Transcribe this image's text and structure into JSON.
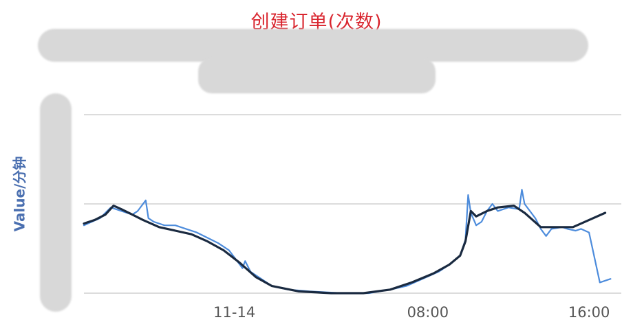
{
  "chart_data": {
    "type": "line",
    "title": "创建订单(次数)",
    "ylabel": "Value/分钟",
    "xlabel": "",
    "x_ticks": [
      {
        "x": 0.28,
        "label": "11-14"
      },
      {
        "x": 0.64,
        "label": "08:00"
      },
      {
        "x": 0.94,
        "label": "16:00"
      }
    ],
    "xlim": [
      0,
      1
    ],
    "ylim": [
      0,
      1
    ],
    "grid_lines": [
      0,
      0.5,
      1
    ],
    "grid": true,
    "colors": {
      "raw": "#3a80d8",
      "smooth": "#1a2a40",
      "grid": "#c8c8c8",
      "title": "#d9262f",
      "ylabel": "#4a6fb0"
    },
    "series": [
      {
        "style": "raw",
        "points": [
          [
            0.0,
            0.38
          ],
          [
            0.03,
            0.42
          ],
          [
            0.05,
            0.48
          ],
          [
            0.07,
            0.46
          ],
          [
            0.09,
            0.44
          ],
          [
            0.1,
            0.46
          ],
          [
            0.115,
            0.52
          ],
          [
            0.12,
            0.42
          ],
          [
            0.13,
            0.4
          ],
          [
            0.15,
            0.38
          ],
          [
            0.17,
            0.38
          ],
          [
            0.19,
            0.36
          ],
          [
            0.21,
            0.34
          ],
          [
            0.23,
            0.31
          ],
          [
            0.25,
            0.28
          ],
          [
            0.27,
            0.24
          ],
          [
            0.285,
            0.18
          ],
          [
            0.29,
            0.16
          ],
          [
            0.295,
            0.14
          ],
          [
            0.3,
            0.18
          ],
          [
            0.31,
            0.12
          ],
          [
            0.33,
            0.08
          ],
          [
            0.35,
            0.04
          ],
          [
            0.38,
            0.02
          ],
          [
            0.42,
            0.01
          ],
          [
            0.48,
            0.0
          ],
          [
            0.53,
            0.0
          ],
          [
            0.57,
            0.02
          ],
          [
            0.6,
            0.04
          ],
          [
            0.63,
            0.08
          ],
          [
            0.66,
            0.12
          ],
          [
            0.68,
            0.16
          ],
          [
            0.7,
            0.21
          ],
          [
            0.71,
            0.3
          ],
          [
            0.715,
            0.55
          ],
          [
            0.72,
            0.45
          ],
          [
            0.73,
            0.38
          ],
          [
            0.74,
            0.4
          ],
          [
            0.75,
            0.46
          ],
          [
            0.76,
            0.5
          ],
          [
            0.77,
            0.46
          ],
          [
            0.79,
            0.48
          ],
          [
            0.81,
            0.47
          ],
          [
            0.815,
            0.58
          ],
          [
            0.82,
            0.5
          ],
          [
            0.84,
            0.42
          ],
          [
            0.85,
            0.36
          ],
          [
            0.86,
            0.32
          ],
          [
            0.87,
            0.36
          ],
          [
            0.89,
            0.37
          ],
          [
            0.9,
            0.36
          ],
          [
            0.915,
            0.35
          ],
          [
            0.925,
            0.36
          ],
          [
            0.94,
            0.34
          ],
          [
            0.96,
            0.06
          ],
          [
            0.98,
            0.08
          ]
        ]
      },
      {
        "style": "smooth",
        "points": [
          [
            0.0,
            0.39
          ],
          [
            0.02,
            0.41
          ],
          [
            0.04,
            0.44
          ],
          [
            0.055,
            0.49
          ],
          [
            0.07,
            0.47
          ],
          [
            0.09,
            0.44
          ],
          [
            0.11,
            0.41
          ],
          [
            0.14,
            0.37
          ],
          [
            0.17,
            0.35
          ],
          [
            0.2,
            0.33
          ],
          [
            0.23,
            0.29
          ],
          [
            0.26,
            0.24
          ],
          [
            0.29,
            0.17
          ],
          [
            0.32,
            0.09
          ],
          [
            0.35,
            0.04
          ],
          [
            0.4,
            0.01
          ],
          [
            0.46,
            0.0
          ],
          [
            0.52,
            0.0
          ],
          [
            0.57,
            0.02
          ],
          [
            0.61,
            0.06
          ],
          [
            0.65,
            0.11
          ],
          [
            0.68,
            0.16
          ],
          [
            0.7,
            0.21
          ],
          [
            0.71,
            0.29
          ],
          [
            0.72,
            0.46
          ],
          [
            0.73,
            0.43
          ],
          [
            0.75,
            0.46
          ],
          [
            0.77,
            0.48
          ],
          [
            0.8,
            0.49
          ],
          [
            0.82,
            0.45
          ],
          [
            0.85,
            0.37
          ],
          [
            0.88,
            0.37
          ],
          [
            0.91,
            0.37
          ],
          [
            0.94,
            0.41
          ],
          [
            0.97,
            0.45
          ]
        ]
      }
    ]
  }
}
